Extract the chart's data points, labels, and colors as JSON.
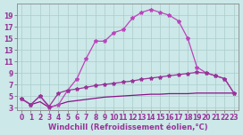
{
  "xlabel": "Windchill (Refroidissement éolien,°C)",
  "background_color": "#cce8e8",
  "grid_color": "#aacccc",
  "line_color1": "#bb44bb",
  "line_color2": "#993399",
  "line_color3": "#881188",
  "xlim": [
    -0.5,
    23.5
  ],
  "ylim": [
    2.5,
    21.0
  ],
  "xticks": [
    0,
    1,
    2,
    3,
    4,
    5,
    6,
    7,
    8,
    9,
    10,
    11,
    12,
    13,
    14,
    15,
    16,
    17,
    18,
    19,
    20,
    21,
    22,
    23
  ],
  "yticks": [
    3,
    5,
    7,
    9,
    11,
    13,
    15,
    17,
    19
  ],
  "curve1_x": [
    0,
    1,
    2,
    3,
    4,
    5,
    6,
    7,
    8,
    9,
    10,
    11,
    12,
    13,
    14,
    15,
    16,
    17,
    18,
    19,
    20,
    21,
    22,
    23
  ],
  "curve1_y": [
    4.5,
    3.5,
    5.0,
    3.0,
    3.5,
    6.0,
    8.0,
    11.5,
    14.5,
    14.5,
    16.0,
    16.5,
    18.5,
    19.5,
    20.0,
    19.5,
    19.0,
    18.0,
    15.0,
    10.0,
    9.0,
    8.5,
    8.0,
    5.5
  ],
  "curve2_x": [
    0,
    1,
    2,
    3,
    4,
    5,
    6,
    7,
    8,
    9,
    10,
    11,
    12,
    13,
    14,
    15,
    16,
    17,
    18,
    19,
    20,
    21,
    22,
    23
  ],
  "curve2_y": [
    4.5,
    3.5,
    5.0,
    3.2,
    5.5,
    6.0,
    6.2,
    6.5,
    6.8,
    7.0,
    7.2,
    7.4,
    7.6,
    7.9,
    8.1,
    8.3,
    8.5,
    8.7,
    8.9,
    9.1,
    9.0,
    8.5,
    8.0,
    5.5
  ],
  "curve3_x": [
    0,
    1,
    2,
    3,
    4,
    5,
    6,
    7,
    8,
    9,
    10,
    11,
    12,
    13,
    14,
    15,
    16,
    17,
    18,
    19,
    20,
    21,
    22,
    23
  ],
  "curve3_y": [
    4.5,
    3.5,
    4.0,
    3.0,
    3.5,
    4.0,
    4.2,
    4.4,
    4.6,
    4.8,
    4.9,
    5.0,
    5.1,
    5.2,
    5.3,
    5.3,
    5.4,
    5.4,
    5.4,
    5.5,
    5.5,
    5.5,
    5.5,
    5.5
  ],
  "marker": "*",
  "marker_size": 3,
  "line_width": 0.9,
  "tick_fontsize": 5.5,
  "label_fontsize": 6.0
}
